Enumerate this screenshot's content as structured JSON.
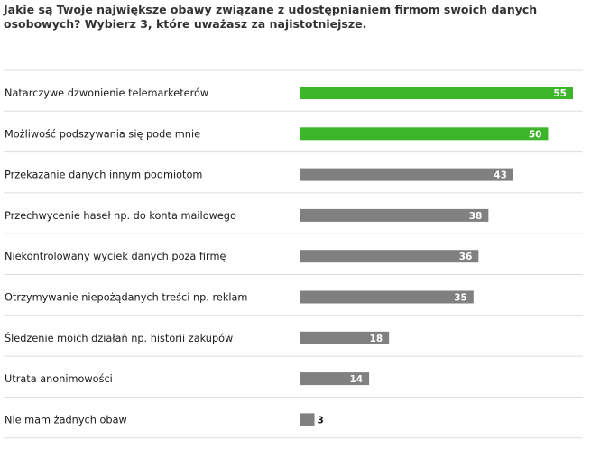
{
  "chart_data": {
    "type": "bar",
    "orientation": "horizontal",
    "title": "Jakie są Twoje największe obawy związane z udostępnianiem firmom swoich danych osobowych? Wybierz 3, które uważasz za najistotniejsze.",
    "categories": [
      "Natarczywe dzwonienie telemarketerów",
      "Możliwość podszywania się pode mnie",
      "Przekazanie danych innym podmiotom",
      "Przechwycenie haseł np. do konta mailowego",
      "Niekontrolowany wyciek danych poza firmę",
      "Otrzymywanie niepożądanych treści np. reklam",
      "Śledzenie moich działań np. historii zakupów",
      "Utrata anonimowości",
      "Nie mam żadnych obaw"
    ],
    "values": [
      55,
      50,
      43,
      38,
      36,
      35,
      18,
      14,
      3
    ],
    "xlim": [
      0,
      55
    ],
    "xlabel": "",
    "ylabel": "",
    "grid": false,
    "colors": {
      "highlight": "#3db52a",
      "default": "#808080",
      "divider": "#dddddd",
      "label_inside": "#ffffff",
      "label_outside": "#1a1a1a"
    },
    "highlight_top_n": 2
  }
}
